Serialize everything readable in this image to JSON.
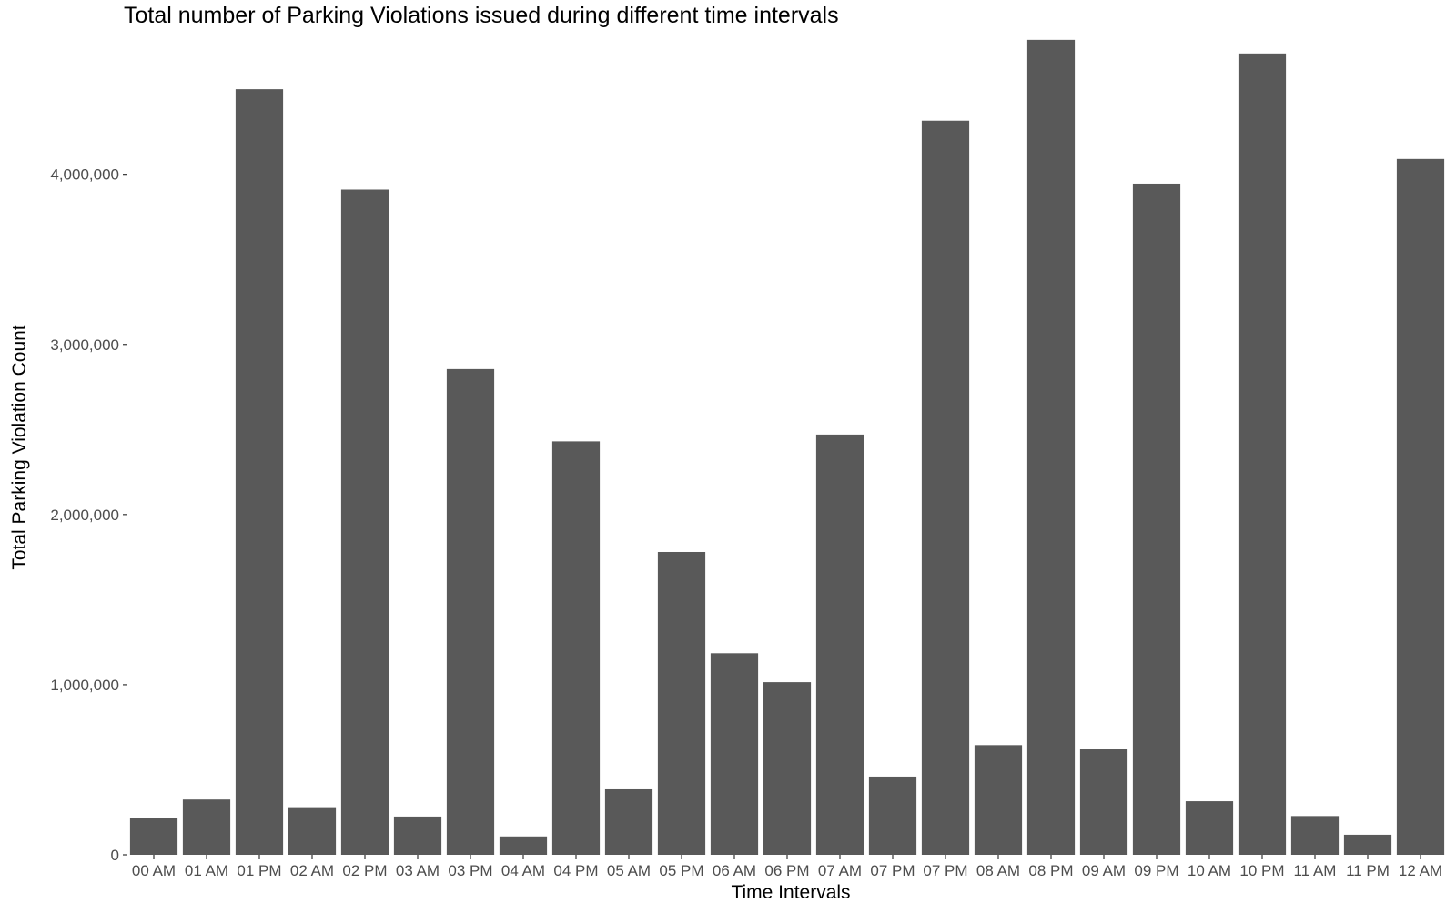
{
  "chart_data": {
    "type": "bar",
    "title": "Total number of Parking Violations issued during different time intervals",
    "xlabel": "Time Intervals",
    "ylabel": "Total Parking Violation Count",
    "categories": [
      "00 AM",
      "01 AM",
      "01 PM",
      "02 AM",
      "02 PM",
      "03 AM",
      "03 PM",
      "04 AM",
      "04 PM",
      "05 AM",
      "05 PM",
      "06 AM",
      "06 PM",
      "07 AM",
      "07 PM",
      "07 PM",
      "08 AM",
      "08 PM",
      "09 AM",
      "09 PM",
      "10 AM",
      "10 PM",
      "11 AM",
      "11 PM",
      "12 AM"
    ],
    "values": [
      215000,
      325000,
      4500000,
      280000,
      3910000,
      225000,
      2855000,
      108000,
      2430000,
      385000,
      1780000,
      1185000,
      1015000,
      2470000,
      460000,
      4315000,
      645000,
      4790000,
      620000,
      3945000,
      315000,
      4710000,
      228000,
      118000,
      4090000
    ],
    "ylim": [
      0,
      4800000
    ],
    "yticks": [
      0,
      1000000,
      2000000,
      3000000,
      4000000
    ],
    "ytick_labels": [
      "0",
      "1,000,000",
      "2,000,000",
      "3,000,000",
      "4,000,000"
    ],
    "grid": false,
    "bar_color": "#595959"
  }
}
